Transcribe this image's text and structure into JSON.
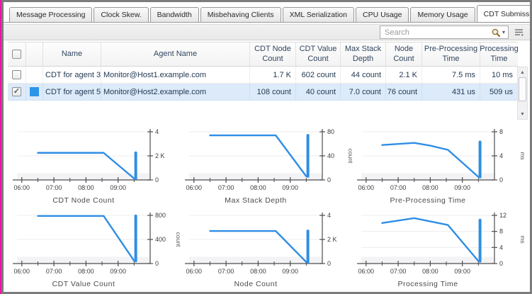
{
  "tabs": {
    "items": [
      {
        "label": "Message Processing",
        "active": false
      },
      {
        "label": "Clock Skew.",
        "active": false
      },
      {
        "label": "Bandwidth",
        "active": false
      },
      {
        "label": "Misbehaving Clients",
        "active": false
      },
      {
        "label": "XML Serialization",
        "active": false
      },
      {
        "label": "CPU Usage",
        "active": false
      },
      {
        "label": "Memory Usage",
        "active": false
      },
      {
        "label": "CDT Submission",
        "active": true
      }
    ]
  },
  "toolbar": {
    "search_placeholder": "Search"
  },
  "icons": {
    "search": "magnifier",
    "search_scope_caret": "▾",
    "column_chooser": "list-menu",
    "scroll_up": "▲",
    "scroll_down": "▼",
    "check": "✓"
  },
  "table": {
    "columns": [
      "",
      "",
      "Name",
      "Agent Name",
      "CDT Node Count",
      "CDT Value Count",
      "Max Stack Depth",
      "Node Count",
      "Pre-Processing Time",
      "Processing Time"
    ],
    "rows": [
      {
        "checked": false,
        "selected": false,
        "color": null,
        "name": "CDT for agent 3",
        "agent": "Monitor@Host1.example.com",
        "values": [
          "1.7 K",
          "602 count",
          "44 count",
          "2.1 K",
          "7.5 ms",
          "10 ms"
        ]
      },
      {
        "checked": true,
        "selected": true,
        "color": "#2b95e9",
        "name": "CDT for agent 5",
        "agent": "Monitor@Host2.example.com",
        "values": [
          "108 count",
          "40 count",
          "7.0 count",
          "76 count",
          "431 us",
          "509 us"
        ]
      }
    ]
  },
  "colors": {
    "accent_line": "#2f8ee5",
    "selected_row_bg": "#dceafa",
    "series_swatch": "#2b95e9",
    "left_edge": "#e716a2"
  },
  "chart_data": [
    {
      "type": "line",
      "title": "CDT Node Count",
      "unit": "",
      "xlim": [
        5.85,
        10.0
      ],
      "ylim": [
        0,
        4
      ],
      "xticks": [
        {
          "v": 6,
          "label": "06:00"
        },
        {
          "v": 7,
          "label": "07:00"
        },
        {
          "v": 8,
          "label": "08:00"
        },
        {
          "v": 9,
          "label": "09:00"
        }
      ],
      "minor_xticks": [
        6.5,
        7.5,
        8.5,
        9.5
      ],
      "yticks": [
        {
          "v": 0,
          "label": "0"
        },
        {
          "v": 2,
          "label": "2 K"
        },
        {
          "v": 4,
          "label": "4"
        }
      ],
      "points": [
        [
          6.5,
          2.25
        ],
        [
          8.55,
          2.25
        ],
        [
          9.5,
          0.12
        ]
      ],
      "spike": {
        "x": 9.55,
        "y0": 0.12,
        "y1": 2.25
      }
    },
    {
      "type": "line",
      "title": "Max Stack Depth",
      "unit": "count",
      "xlim": [
        5.85,
        10.0
      ],
      "ylim": [
        0,
        80
      ],
      "xticks": [
        {
          "v": 6,
          "label": "06:00"
        },
        {
          "v": 7,
          "label": "07:00"
        },
        {
          "v": 8,
          "label": "08:00"
        },
        {
          "v": 9,
          "label": "09:00"
        }
      ],
      "minor_xticks": [
        6.5,
        7.5,
        8.5,
        9.5
      ],
      "yticks": [
        {
          "v": 0,
          "label": "0"
        },
        {
          "v": 40,
          "label": "40"
        },
        {
          "v": 80,
          "label": "80"
        }
      ],
      "points": [
        [
          6.5,
          74
        ],
        [
          8.55,
          74
        ],
        [
          9.5,
          6
        ]
      ],
      "spike": {
        "x": 9.55,
        "y0": 6,
        "y1": 74
      }
    },
    {
      "type": "line",
      "title": "Pre-Processing Time",
      "unit": "ms",
      "xlim": [
        5.85,
        10.0
      ],
      "ylim": [
        0,
        8
      ],
      "xticks": [
        {
          "v": 6,
          "label": "06:00"
        },
        {
          "v": 7,
          "label": "07:00"
        },
        {
          "v": 8,
          "label": "08:00"
        },
        {
          "v": 9,
          "label": "09:00"
        }
      ],
      "minor_xticks": [
        6.5,
        7.5,
        8.5,
        9.5
      ],
      "yticks": [
        {
          "v": 0,
          "label": "0"
        },
        {
          "v": 4,
          "label": "4"
        },
        {
          "v": 8,
          "label": "8"
        }
      ],
      "points": [
        [
          6.5,
          5.8
        ],
        [
          7.5,
          6.15
        ],
        [
          8.0,
          5.7
        ],
        [
          8.55,
          5.0
        ],
        [
          9.5,
          0.5
        ]
      ],
      "spike": {
        "x": 9.55,
        "y0": 0.5,
        "y1": 6.3
      }
    },
    {
      "type": "line",
      "title": "CDT Value Count",
      "unit": "count",
      "xlim": [
        5.85,
        10.0
      ],
      "ylim": [
        0,
        800
      ],
      "xticks": [
        {
          "v": 6,
          "label": "06:00"
        },
        {
          "v": 7,
          "label": "07:00"
        },
        {
          "v": 8,
          "label": "08:00"
        },
        {
          "v": 9,
          "label": "09:00"
        }
      ],
      "minor_xticks": [
        6.5,
        7.5,
        8.5,
        9.5
      ],
      "yticks": [
        {
          "v": 0,
          "label": "0"
        },
        {
          "v": 400,
          "label": "400"
        },
        {
          "v": 800,
          "label": "800"
        }
      ],
      "points": [
        [
          6.5,
          790
        ],
        [
          8.55,
          790
        ],
        [
          9.5,
          45
        ]
      ],
      "spike": {
        "x": 9.55,
        "y0": 45,
        "y1": 790
      }
    },
    {
      "type": "line",
      "title": "Node Count",
      "unit": "",
      "xlim": [
        5.85,
        10.0
      ],
      "ylim": [
        0,
        4
      ],
      "xticks": [
        {
          "v": 6,
          "label": "06:00"
        },
        {
          "v": 7,
          "label": "07:00"
        },
        {
          "v": 8,
          "label": "08:00"
        },
        {
          "v": 9,
          "label": "09:00"
        }
      ],
      "minor_xticks": [
        6.5,
        7.5,
        8.5,
        9.5
      ],
      "yticks": [
        {
          "v": 0,
          "label": "0"
        },
        {
          "v": 2,
          "label": "2 K"
        },
        {
          "v": 4,
          "label": "4"
        }
      ],
      "points": [
        [
          6.5,
          2.7
        ],
        [
          8.55,
          2.7
        ],
        [
          9.5,
          0.12
        ]
      ],
      "spike": {
        "x": 9.55,
        "y0": 0.12,
        "y1": 2.7
      }
    },
    {
      "type": "line",
      "title": "Processing Time",
      "unit": "ms",
      "xlim": [
        5.85,
        10.0
      ],
      "ylim": [
        0,
        12
      ],
      "xticks": [
        {
          "v": 6,
          "label": "06:00"
        },
        {
          "v": 7,
          "label": "07:00"
        },
        {
          "v": 8,
          "label": "08:00"
        },
        {
          "v": 9,
          "label": "09:00"
        }
      ],
      "minor_xticks": [
        6.5,
        7.5,
        8.5,
        9.5
      ],
      "yticks": [
        {
          "v": 0,
          "label": "0"
        },
        {
          "v": 4,
          "label": "4"
        },
        {
          "v": 8,
          "label": "8"
        },
        {
          "v": 12,
          "label": "12"
        }
      ],
      "points": [
        [
          6.5,
          10.1
        ],
        [
          7.5,
          11.3
        ],
        [
          8.55,
          9.6
        ],
        [
          9.5,
          0.6
        ]
      ],
      "spike": {
        "x": 9.55,
        "y0": 0.6,
        "y1": 10.8
      }
    }
  ]
}
